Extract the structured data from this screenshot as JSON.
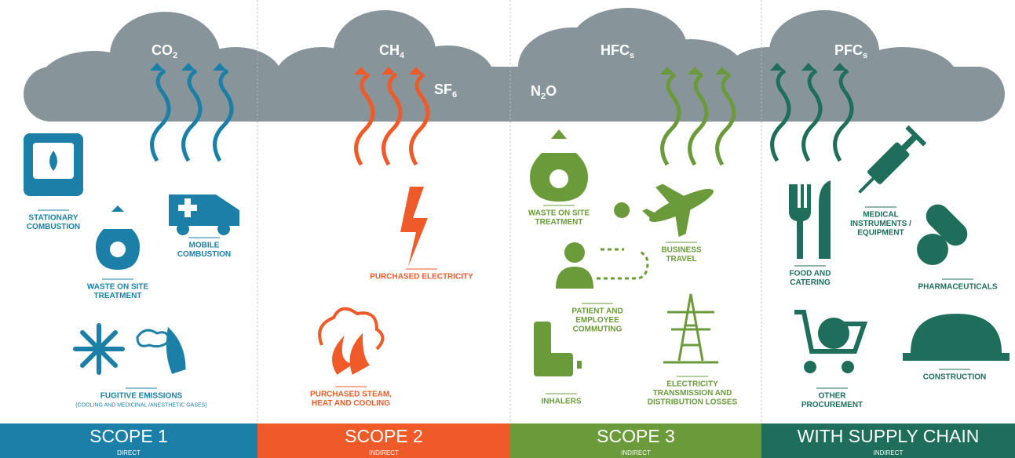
{
  "gases": [
    {
      "base": "CO",
      "sub": "2"
    },
    {
      "base": "CH",
      "sub": "4"
    },
    {
      "base": "SF",
      "sub": "6"
    },
    {
      "base": "HFC",
      "sub": "s"
    },
    {
      "base": "N",
      "sub": "2",
      "tail": "O"
    },
    {
      "base": "PFC",
      "sub": "s"
    }
  ],
  "scopes": [
    {
      "title": "SCOPE 1",
      "subtitle": "DIRECT",
      "color": "#1b7fa7",
      "items": [
        {
          "lines": [
            "STATIONARY",
            "COMBUSTION"
          ]
        },
        {
          "lines": [
            "WASTE ON SITE",
            "TREATMENT"
          ]
        },
        {
          "lines": [
            "MOBILE",
            "COMBUSTION"
          ]
        },
        {
          "lines": [
            "FUGITIVE EMISSIONS"
          ],
          "note": "(COOLING AND MEDICINAL /ANESTHETIC GASES)"
        }
      ]
    },
    {
      "title": "SCOPE 2",
      "subtitle": "INDIRECT",
      "color": "#f05a28",
      "items": [
        {
          "lines": [
            "PURCHASED ELECTRICITY"
          ]
        },
        {
          "lines": [
            "PURCHASED STEAM,",
            "HEAT AND COOLING"
          ]
        }
      ]
    },
    {
      "title": "SCOPE 3",
      "subtitle": "INDIRECT",
      "color": "#6b9a3a",
      "items": [
        {
          "lines": [
            "WASTE ON SITE",
            "TREATMENT"
          ]
        },
        {
          "lines": [
            "BUSINESS",
            "TRAVEL"
          ]
        },
        {
          "lines": [
            "PATIENT AND",
            "EMPLOYEE",
            "COMMUTING"
          ]
        },
        {
          "lines": [
            "INHALERS"
          ]
        },
        {
          "lines": [
            "ELECTRICITY",
            "TRANSMISSION AND",
            "DISTRIBUTION LOSSES"
          ]
        }
      ]
    },
    {
      "title": "WITH SUPPLY CHAIN",
      "subtitle": "INDIRECT",
      "color": "#1f6e5b",
      "items": [
        {
          "lines": [
            "FOOD AND",
            "CATERING"
          ]
        },
        {
          "lines": [
            "MEDICAL",
            "INSTRUMENTS /",
            "EQUIPMENT"
          ]
        },
        {
          "lines": [
            "PHARMACEUTICALS"
          ]
        },
        {
          "lines": [
            "OTHER",
            "PROCUREMENT"
          ]
        },
        {
          "lines": [
            "CONSTRUCTION"
          ]
        }
      ]
    }
  ]
}
